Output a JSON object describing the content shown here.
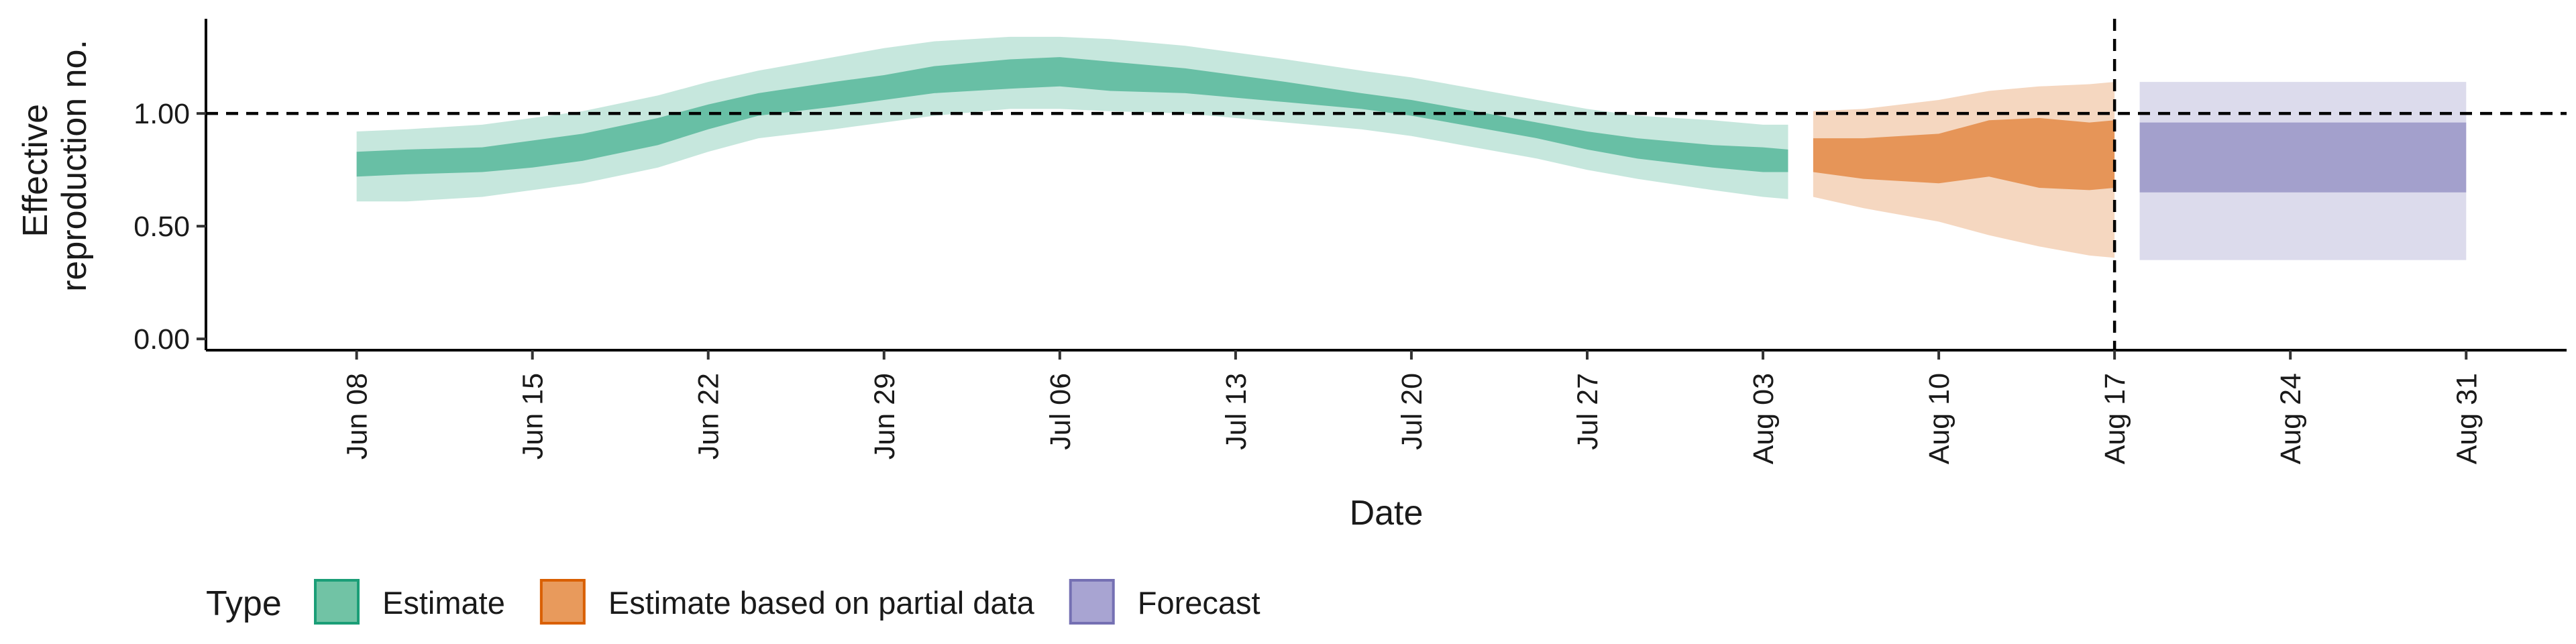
{
  "chart_data": {
    "type": "area",
    "xlabel": "Date",
    "ylabel_line1": "Effective",
    "ylabel_line2": "reproduction no.",
    "x_range": [
      "2020-06-02",
      "2020-09-04"
    ],
    "ylim": [
      -0.05,
      1.42
    ],
    "y_ticks": [
      0.0,
      0.5,
      1.0
    ],
    "y_tick_labels": [
      "0.00",
      "0.50",
      "1.00"
    ],
    "x_ticks": [
      "2020-06-08",
      "2020-06-15",
      "2020-06-22",
      "2020-06-29",
      "2020-07-06",
      "2020-07-13",
      "2020-07-20",
      "2020-07-27",
      "2020-08-03",
      "2020-08-10",
      "2020-08-17",
      "2020-08-24",
      "2020-08-31"
    ],
    "x_tick_labels": [
      "Jun 08",
      "Jun 15",
      "Jun 22",
      "Jun 29",
      "Jul 06",
      "Jul 13",
      "Jul 20",
      "Jul 27",
      "Aug 03",
      "Aug 10",
      "Aug 17",
      "Aug 24",
      "Aug 31"
    ],
    "reference_hline": 1.0,
    "reference_vline": "2020-08-17",
    "grid": false,
    "legend_position": "bottom-left",
    "series": [
      {
        "name": "Estimate",
        "color": "#1b9e77",
        "x": [
          "2020-06-08",
          "2020-06-10",
          "2020-06-13",
          "2020-06-15",
          "2020-06-17",
          "2020-06-20",
          "2020-06-22",
          "2020-06-24",
          "2020-06-27",
          "2020-06-29",
          "2020-07-01",
          "2020-07-04",
          "2020-07-06",
          "2020-07-08",
          "2020-07-11",
          "2020-07-13",
          "2020-07-15",
          "2020-07-18",
          "2020-07-20",
          "2020-07-22",
          "2020-07-25",
          "2020-07-27",
          "2020-07-29",
          "2020-08-01",
          "2020-08-03",
          "2020-08-04"
        ],
        "lower_90": [
          0.61,
          0.61,
          0.63,
          0.66,
          0.69,
          0.76,
          0.83,
          0.89,
          0.93,
          0.96,
          0.99,
          1.02,
          1.02,
          1.01,
          1.0,
          0.98,
          0.96,
          0.93,
          0.9,
          0.86,
          0.8,
          0.75,
          0.71,
          0.66,
          0.63,
          0.62
        ],
        "lower_50": [
          0.72,
          0.73,
          0.74,
          0.76,
          0.79,
          0.86,
          0.93,
          0.99,
          1.03,
          1.06,
          1.09,
          1.11,
          1.12,
          1.1,
          1.09,
          1.07,
          1.05,
          1.02,
          0.99,
          0.95,
          0.89,
          0.84,
          0.8,
          0.76,
          0.74,
          0.74
        ],
        "upper_50": [
          0.83,
          0.84,
          0.85,
          0.88,
          0.91,
          0.98,
          1.04,
          1.09,
          1.14,
          1.17,
          1.21,
          1.24,
          1.25,
          1.23,
          1.2,
          1.17,
          1.14,
          1.09,
          1.06,
          1.02,
          0.96,
          0.92,
          0.89,
          0.86,
          0.85,
          0.84
        ],
        "upper_90": [
          0.92,
          0.93,
          0.95,
          0.98,
          1.01,
          1.08,
          1.14,
          1.19,
          1.25,
          1.29,
          1.32,
          1.34,
          1.34,
          1.33,
          1.3,
          1.27,
          1.24,
          1.19,
          1.16,
          1.12,
          1.06,
          1.02,
          0.99,
          0.97,
          0.95,
          0.95
        ]
      },
      {
        "name": "Estimate based on partial data",
        "color": "#d95f02",
        "x": [
          "2020-08-05",
          "2020-08-07",
          "2020-08-10",
          "2020-08-12",
          "2020-08-14",
          "2020-08-16",
          "2020-08-17"
        ],
        "lower_90": [
          0.63,
          0.58,
          0.52,
          0.46,
          0.41,
          0.37,
          0.36
        ],
        "lower_50": [
          0.74,
          0.71,
          0.69,
          0.72,
          0.67,
          0.66,
          0.67
        ],
        "upper_50": [
          0.89,
          0.89,
          0.91,
          0.97,
          0.98,
          0.96,
          0.97
        ],
        "upper_90": [
          1.01,
          1.02,
          1.06,
          1.1,
          1.12,
          1.13,
          1.14
        ]
      },
      {
        "name": "Forecast",
        "color": "#7570b3",
        "x": [
          "2020-08-18",
          "2020-08-31"
        ],
        "lower_90": [
          0.35,
          0.35
        ],
        "lower_50": [
          0.65,
          0.65
        ],
        "upper_50": [
          0.96,
          0.96
        ],
        "upper_90": [
          1.14,
          1.14
        ]
      }
    ]
  },
  "legend": {
    "title": "Type",
    "items": [
      {
        "label": "Estimate",
        "fill": "#71c3a5",
        "stroke": "#1b9e77"
      },
      {
        "label": "Estimate based on partial data",
        "fill": "#e89a5c",
        "stroke": "#d95f02"
      },
      {
        "label": "Forecast",
        "fill": "#a8a4d2",
        "stroke": "#7570b3"
      }
    ]
  }
}
